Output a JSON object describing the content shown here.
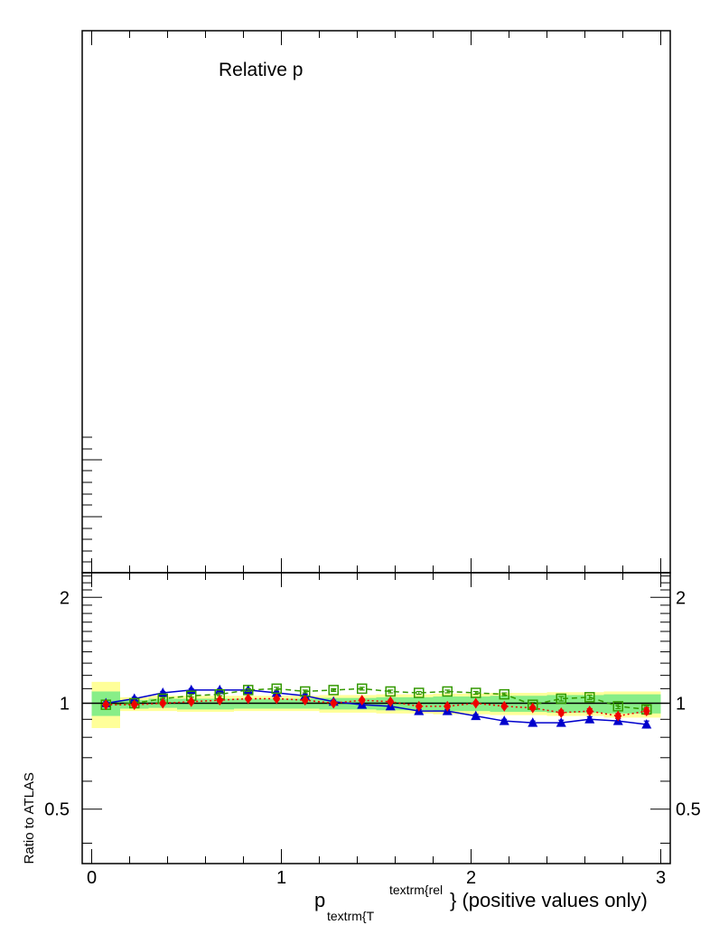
{
  "chart_data": [
    {
      "type": "line",
      "panel": "upper",
      "title": "Relative p",
      "series": []
    },
    {
      "type": "line",
      "panel": "ratio",
      "xlabel_main": "p",
      "xlabel_sub": "textrm{T",
      "xlabel_sup": "textrm{rel",
      "xlabel_tail": "} (positive values only)",
      "ylabel": "Ratio to ATLAS",
      "xlim": [
        -0.05,
        3.05
      ],
      "ylim": [
        0.35,
        2.35
      ],
      "log_y": true,
      "x_ticks": [
        "0",
        "1",
        "2",
        "3"
      ],
      "y_ticks": [
        "0.5",
        "1",
        "2"
      ],
      "y_tick_values": [
        0.5,
        1,
        2
      ],
      "reference_line": 1,
      "band_bins": [
        {
          "x0": 0.0,
          "x1": 0.15,
          "inner": [
            0.92,
            1.08
          ],
          "outer": [
            0.85,
            1.15
          ]
        },
        {
          "x0": 0.15,
          "x1": 0.3,
          "inner": [
            0.965,
            1.02
          ],
          "outer": [
            0.95,
            1.04
          ]
        },
        {
          "x0": 0.3,
          "x1": 0.45,
          "inner": [
            0.97,
            1.03
          ],
          "outer": [
            0.95,
            1.05
          ]
        },
        {
          "x0": 0.45,
          "x1": 0.75,
          "inner": [
            0.96,
            1.03
          ],
          "outer": [
            0.945,
            1.05
          ]
        },
        {
          "x0": 0.75,
          "x1": 1.2,
          "inner": [
            0.965,
            1.03
          ],
          "outer": [
            0.95,
            1.05
          ]
        },
        {
          "x0": 1.2,
          "x1": 1.5,
          "inner": [
            0.96,
            1.035
          ],
          "outer": [
            0.94,
            1.055
          ]
        },
        {
          "x0": 1.5,
          "x1": 1.8,
          "inner": [
            0.955,
            1.04
          ],
          "outer": [
            0.935,
            1.06
          ]
        },
        {
          "x0": 1.8,
          "x1": 2.1,
          "inner": [
            0.95,
            1.045
          ],
          "outer": [
            0.93,
            1.065
          ]
        },
        {
          "x0": 2.1,
          "x1": 2.4,
          "inner": [
            0.945,
            1.05
          ],
          "outer": [
            0.925,
            1.07
          ]
        },
        {
          "x0": 2.4,
          "x1": 2.7,
          "inner": [
            0.94,
            1.055
          ],
          "outer": [
            0.92,
            1.075
          ]
        },
        {
          "x0": 2.7,
          "x1": 3.0,
          "inner": [
            0.935,
            1.06
          ],
          "outer": [
            0.91,
            1.08
          ]
        }
      ],
      "colors": {
        "band_inner": "#88ee88",
        "band_outer": "#ffff99",
        "series_blue": "#0000cc",
        "series_green": "#339900",
        "series_red": "#ee0000"
      },
      "series": [
        {
          "marker": "triangle",
          "line": "solid",
          "color": "#0000cc",
          "x": [
            0.075,
            0.225,
            0.375,
            0.525,
            0.675,
            0.825,
            0.975,
            1.125,
            1.275,
            1.425,
            1.575,
            1.725,
            1.875,
            2.025,
            2.175,
            2.325,
            2.475,
            2.625,
            2.775,
            2.925
          ],
          "y": [
            1.0,
            1.03,
            1.07,
            1.09,
            1.09,
            1.09,
            1.07,
            1.05,
            1.01,
            0.99,
            0.98,
            0.95,
            0.95,
            0.92,
            0.89,
            0.88,
            0.88,
            0.9,
            0.89,
            0.87
          ],
          "err": [
            0.01,
            0.01,
            0.01,
            0.01,
            0.01,
            0.01,
            0.01,
            0.01,
            0.01,
            0.01,
            0.01,
            0.01,
            0.01,
            0.01,
            0.01,
            0.01,
            0.015,
            0.015,
            0.015,
            0.02
          ]
        },
        {
          "marker": "open-square",
          "line": "dashed",
          "color": "#339900",
          "x": [
            0.075,
            0.225,
            0.375,
            0.525,
            0.675,
            0.825,
            0.975,
            1.125,
            1.275,
            1.425,
            1.575,
            1.725,
            1.875,
            2.025,
            2.175,
            2.325,
            2.475,
            2.625,
            2.775,
            2.925
          ],
          "y": [
            0.99,
            1.0,
            1.03,
            1.05,
            1.06,
            1.09,
            1.1,
            1.08,
            1.09,
            1.1,
            1.08,
            1.07,
            1.08,
            1.07,
            1.06,
            0.99,
            1.03,
            1.04,
            0.98,
            0.96
          ],
          "err": [
            0.01,
            0.01,
            0.01,
            0.01,
            0.01,
            0.01,
            0.01,
            0.01,
            0.01,
            0.01,
            0.01,
            0.01,
            0.01,
            0.01,
            0.01,
            0.015,
            0.015,
            0.015,
            0.015,
            0.02
          ]
        },
        {
          "marker": "diamond",
          "line": "dotted",
          "color": "#ee0000",
          "x": [
            0.075,
            0.225,
            0.375,
            0.525,
            0.675,
            0.825,
            0.975,
            1.125,
            1.275,
            1.425,
            1.575,
            1.725,
            1.875,
            2.025,
            2.175,
            2.325,
            2.475,
            2.625,
            2.775,
            2.925
          ],
          "y": [
            0.99,
            0.99,
            1.0,
            1.01,
            1.02,
            1.03,
            1.03,
            1.02,
            1.0,
            1.02,
            1.01,
            0.98,
            0.98,
            1.0,
            0.98,
            0.97,
            0.94,
            0.95,
            0.92,
            0.95
          ],
          "err": [
            0.01,
            0.01,
            0.01,
            0.01,
            0.01,
            0.01,
            0.01,
            0.01,
            0.01,
            0.01,
            0.01,
            0.01,
            0.01,
            0.01,
            0.01,
            0.01,
            0.015,
            0.015,
            0.015,
            0.02
          ]
        }
      ]
    }
  ]
}
